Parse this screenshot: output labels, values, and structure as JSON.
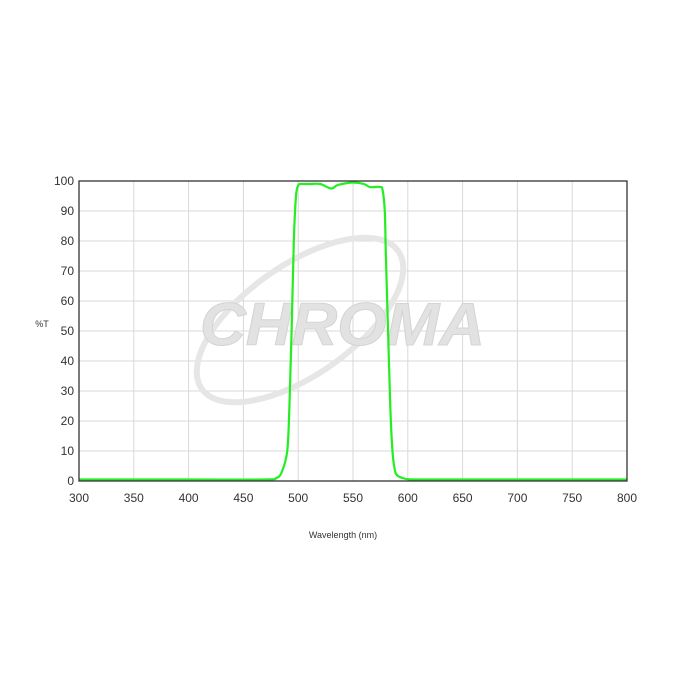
{
  "chart_data": {
    "type": "line",
    "title": "",
    "xlabel": "Wavelength (nm)",
    "ylabel": "%T",
    "xlim": [
      300,
      800
    ],
    "ylim": [
      0,
      100
    ],
    "xticks": [
      300,
      350,
      400,
      450,
      500,
      550,
      600,
      650,
      700,
      750,
      800
    ],
    "yticks": [
      0,
      10,
      20,
      30,
      40,
      50,
      60,
      70,
      80,
      90,
      100
    ],
    "grid": true,
    "series": [
      {
        "color": "#22ee22",
        "x": [
          300,
          400,
          470,
          480,
          485,
          490,
          492,
          494,
          496,
          498,
          500,
          502,
          505,
          510,
          520,
          530,
          535,
          540,
          550,
          560,
          565,
          570,
          575,
          577,
          579,
          580,
          582,
          584,
          586,
          588,
          590,
          595,
          600,
          610,
          650,
          700,
          800
        ],
        "y": [
          0.5,
          0.5,
          0.5,
          1,
          3,
          10,
          25,
          50,
          80,
          95,
          98.5,
          99,
          99,
          99,
          99,
          97.5,
          98.5,
          99,
          99.5,
          99,
          98,
          98,
          98,
          97,
          90,
          75,
          50,
          25,
          10,
          4,
          2,
          1,
          0.6,
          0.5,
          0.5,
          0.5,
          0.5
        ]
      }
    ]
  },
  "watermark": {
    "text": "CHROMA",
    "color": "#dddddd"
  }
}
